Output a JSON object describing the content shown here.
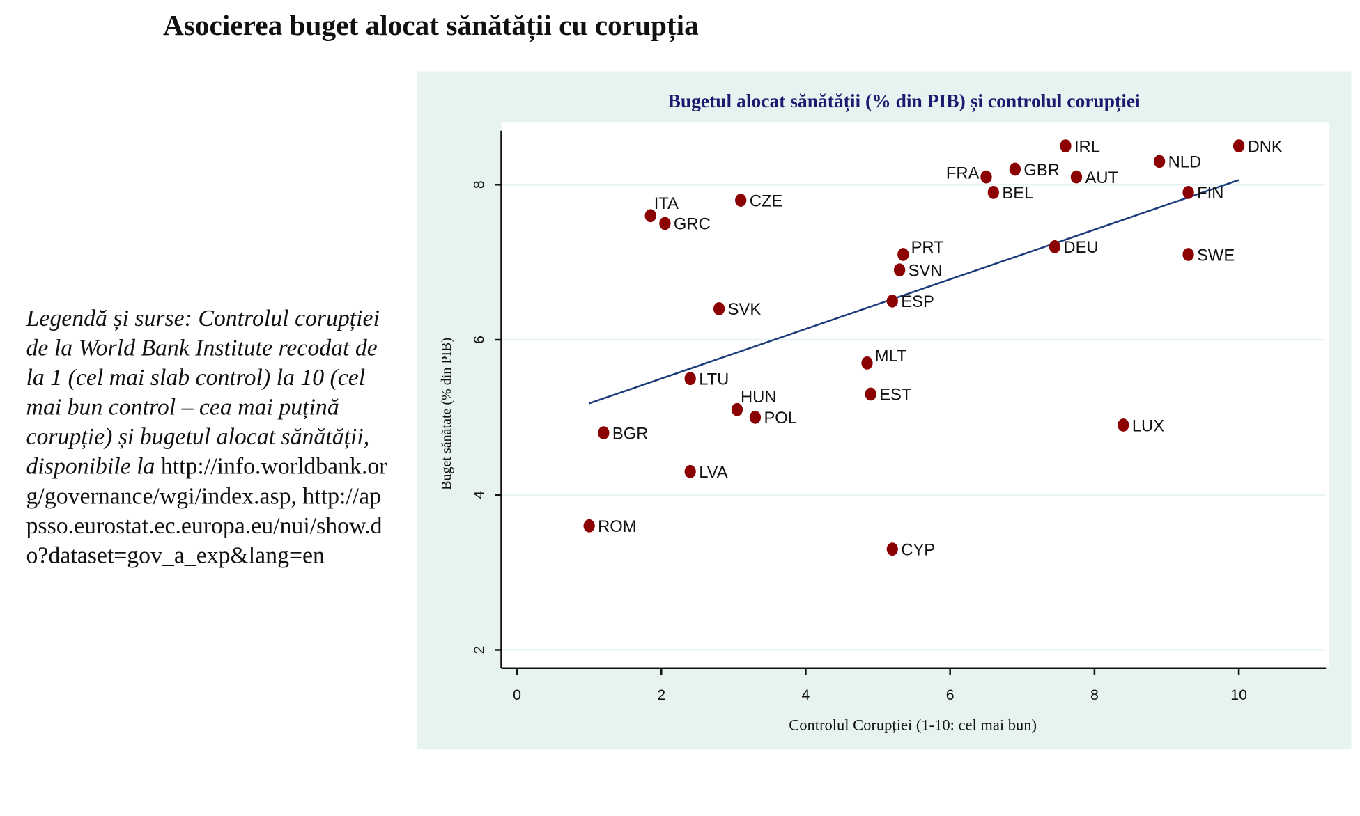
{
  "page": {
    "title": "Asocierea buget alocat sănătății cu corupția",
    "legend_italic": "Legendă și surse: Controlul corupției de la World Bank Institute recodat de la 1 (cel mai slab control) la 10 (cel mai bun control – cea mai puțină corupție) și bugetul alocat sănătății, disponibile la ",
    "legend_urls": "http://info.worldbank.org/governance/wgi/index.asp, http://appsso.eurostat.ec.europa.eu/nui/show.do?dataset=gov_a_exp&lang=en"
  },
  "chart_data": {
    "type": "scatter",
    "title": "Bugetul alocat sănătății (% din PIB) și controlul corupției",
    "xlabel": "Controlul Corupției (1-10: cel mai bun)",
    "ylabel": "Buget sănătate (% din PIB)",
    "xlim": [
      -0.2,
      11.2
    ],
    "ylim": [
      1.8,
      8.7
    ],
    "xticks": [
      0,
      2,
      4,
      6,
      8,
      10
    ],
    "yticks": [
      2,
      4,
      6,
      8
    ],
    "grid": "horizontal",
    "colors": {
      "marker": "#8b0000",
      "fit_line": "#1a3a7a",
      "title": "#1a1a6e",
      "background": "#e6f3f0"
    },
    "points": [
      {
        "label": "ROM",
        "x": 1.0,
        "y": 3.6,
        "labelpos": 3
      },
      {
        "label": "BGR",
        "x": 1.2,
        "y": 4.8,
        "labelpos": 3
      },
      {
        "label": "ITA",
        "x": 1.85,
        "y": 7.6,
        "labelpos": 1
      },
      {
        "label": "GRC",
        "x": 2.05,
        "y": 7.5,
        "labelpos": 3
      },
      {
        "label": "LVA",
        "x": 2.4,
        "y": 4.3,
        "labelpos": 3
      },
      {
        "label": "LTU",
        "x": 2.4,
        "y": 5.5,
        "labelpos": 3
      },
      {
        "label": "SVK",
        "x": 2.8,
        "y": 6.4,
        "labelpos": 3
      },
      {
        "label": "HUN",
        "x": 3.05,
        "y": 5.1,
        "labelpos": 1
      },
      {
        "label": "CZE",
        "x": 3.1,
        "y": 7.8,
        "labelpos": 3
      },
      {
        "label": "POL",
        "x": 3.3,
        "y": 5.0,
        "labelpos": 3
      },
      {
        "label": "MLT",
        "x": 4.85,
        "y": 5.7,
        "labelpos": 2
      },
      {
        "label": "EST",
        "x": 4.9,
        "y": 5.3,
        "labelpos": 3
      },
      {
        "label": "ESP",
        "x": 5.2,
        "y": 6.5,
        "labelpos": 3
      },
      {
        "label": "CYP",
        "x": 5.2,
        "y": 3.3,
        "labelpos": 3
      },
      {
        "label": "SVN",
        "x": 5.3,
        "y": 6.9,
        "labelpos": 3
      },
      {
        "label": "PRT",
        "x": 5.35,
        "y": 7.1,
        "labelpos": 2
      },
      {
        "label": "FRA",
        "x": 6.5,
        "y": 8.1,
        "labelpos": 9
      },
      {
        "label": "BEL",
        "x": 6.6,
        "y": 7.9,
        "labelpos": 3
      },
      {
        "label": "GBR",
        "x": 6.9,
        "y": 8.2,
        "labelpos": 3
      },
      {
        "label": "DEU",
        "x": 7.45,
        "y": 7.2,
        "labelpos": 3
      },
      {
        "label": "IRL",
        "x": 7.6,
        "y": 8.5,
        "labelpos": 3
      },
      {
        "label": "AUT",
        "x": 7.75,
        "y": 8.1,
        "labelpos": 3
      },
      {
        "label": "LUX",
        "x": 8.4,
        "y": 4.9,
        "labelpos": 3
      },
      {
        "label": "NLD",
        "x": 8.9,
        "y": 8.3,
        "labelpos": 3
      },
      {
        "label": "FIN",
        "x": 9.3,
        "y": 7.9,
        "labelpos": 3
      },
      {
        "label": "SWE",
        "x": 9.3,
        "y": 7.1,
        "labelpos": 3
      },
      {
        "label": "DNK",
        "x": 10.0,
        "y": 8.5,
        "labelpos": 3
      }
    ],
    "fit_line": {
      "x": [
        1.0,
        10.0
      ],
      "y": [
        5.18,
        8.06
      ]
    }
  }
}
